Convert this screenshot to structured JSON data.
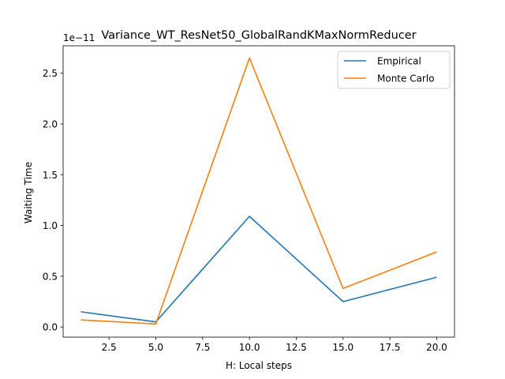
{
  "chart_data": {
    "type": "line",
    "title": "Variance_WT_ResNet50_GlobalRandKMaxNormReducer",
    "xlabel": "H: Local steps",
    "ylabel": "Waiting Time",
    "y_offset_label": "1e−11",
    "xlim": [
      0.05,
      20.95
    ],
    "ylim": [
      -0.1,
      2.77
    ],
    "x_ticks": [
      2.5,
      5.0,
      7.5,
      10.0,
      12.5,
      15.0,
      17.5,
      20.0
    ],
    "x_tick_labels": [
      "2.5",
      "5.0",
      "7.5",
      "10.0",
      "12.5",
      "15.0",
      "17.5",
      "20.0"
    ],
    "y_ticks": [
      0.0,
      0.5,
      1.0,
      1.5,
      2.0,
      2.5
    ],
    "y_tick_labels": [
      "0.0",
      "0.5",
      "1.0",
      "1.5",
      "2.0",
      "2.5"
    ],
    "x": [
      1,
      5,
      10,
      15,
      20
    ],
    "series": [
      {
        "name": "Empirical",
        "color": "#1f77b4",
        "values": [
          0.15,
          0.05,
          1.09,
          0.25,
          0.49
        ]
      },
      {
        "name": "Monte Carlo",
        "color": "#ff7f0e",
        "values": [
          0.07,
          0.03,
          2.65,
          0.38,
          0.74
        ]
      }
    ],
    "legend_position": "upper right",
    "grid": false
  }
}
